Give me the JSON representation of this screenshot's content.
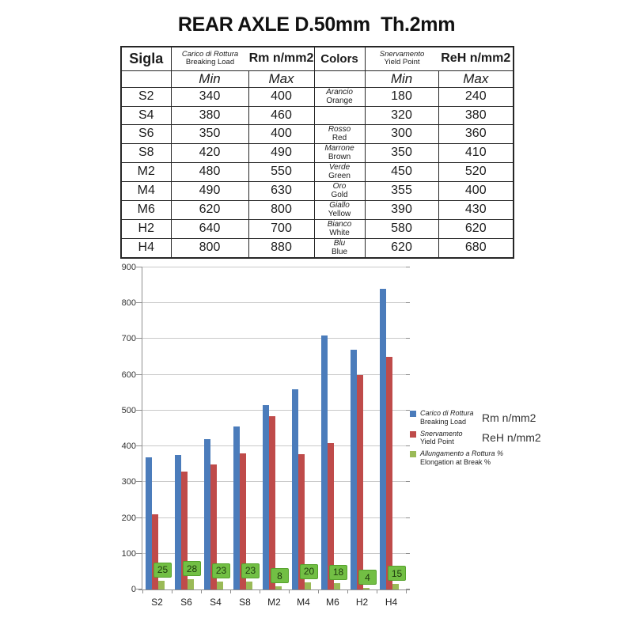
{
  "page": {
    "title": "REAR AXLE D.50mm  Th.2mm"
  },
  "table": {
    "header": {
      "sigla": "Sigla",
      "breaking_it": "Carico di Rottura",
      "breaking_en": "Breaking Load",
      "rm": "Rm n/mm2",
      "colors": "Colors",
      "yield_it": "Snervamento",
      "yield_en": "Yield Point",
      "reh": "ReH n/mm2",
      "min": "Min",
      "max": "Max"
    },
    "rows": [
      {
        "sigla": "S2",
        "break_min": "340",
        "break_max": "400",
        "color_it": "Arancio",
        "color_en": "Orange",
        "yield_min": "180",
        "yield_max": "240"
      },
      {
        "sigla": "S4",
        "break_min": "380",
        "break_max": "460",
        "color_it": "",
        "color_en": "",
        "yield_min": "320",
        "yield_max": "380"
      },
      {
        "sigla": "S6",
        "break_min": "350",
        "break_max": "400",
        "color_it": "Rosso",
        "color_en": "Red",
        "yield_min": "300",
        "yield_max": "360"
      },
      {
        "sigla": "S8",
        "break_min": "420",
        "break_max": "490",
        "color_it": "Marrone",
        "color_en": "Brown",
        "yield_min": "350",
        "yield_max": "410"
      },
      {
        "sigla": "M2",
        "break_min": "480",
        "break_max": "550",
        "color_it": "Verde",
        "color_en": "Green",
        "yield_min": "450",
        "yield_max": "520"
      },
      {
        "sigla": "M4",
        "break_min": "490",
        "break_max": "630",
        "color_it": "Oro",
        "color_en": "Gold",
        "yield_min": "355",
        "yield_max": "400"
      },
      {
        "sigla": "M6",
        "break_min": "620",
        "break_max": "800",
        "color_it": "Giallo",
        "color_en": "Yellow",
        "yield_min": "390",
        "yield_max": "430"
      },
      {
        "sigla": "H2",
        "break_min": "640",
        "break_max": "700",
        "color_it": "Bianco",
        "color_en": "White",
        "yield_min": "580",
        "yield_max": "620"
      },
      {
        "sigla": "H4",
        "break_min": "800",
        "break_max": "880",
        "color_it": "Blu",
        "color_en": "Blue",
        "yield_min": "620",
        "yield_max": "680"
      }
    ]
  },
  "chart_data": {
    "type": "bar",
    "title": "",
    "categories": [
      "S2",
      "S6",
      "S4",
      "S8",
      "M2",
      "M4",
      "M6",
      "H2",
      "H4"
    ],
    "series": [
      {
        "name": "Carico di Rottura / Breaking Load",
        "unit": "Rm n/mm2",
        "color": "#4b7cbb",
        "values": [
          370,
          375,
          420,
          455,
          515,
          560,
          710,
          670,
          840
        ]
      },
      {
        "name": "Snervamento / Yield Point",
        "unit": "ReH n/mm2",
        "color": "#bf4b4a",
        "values": [
          210,
          330,
          350,
          380,
          485,
          377.5,
          410,
          600,
          650
        ]
      },
      {
        "name": "Allungamento a Rottura / Elongation at Break",
        "unit": "%",
        "color": "#9aba57",
        "values": [
          25,
          28,
          23,
          23,
          8,
          20,
          18,
          4,
          15
        ],
        "data_labels": true
      }
    ],
    "ylim": [
      0,
      900
    ],
    "ytick_step": 100,
    "grid": true,
    "legend_position": "right",
    "legend": [
      {
        "line1": "Carico di Rottura",
        "line2": "Breaking Load",
        "unit": "Rm n/mm2"
      },
      {
        "line1": "Snervamento",
        "line2": "Yield Point",
        "unit": "ReH n/mm2"
      },
      {
        "line1": "Allungamento a Rottura  %",
        "line2": "Elongation at Break  %",
        "unit": ""
      }
    ],
    "label_box": {
      "bg": "#72bf44",
      "border": "#56a22d",
      "text": "#1e3a0e"
    }
  }
}
